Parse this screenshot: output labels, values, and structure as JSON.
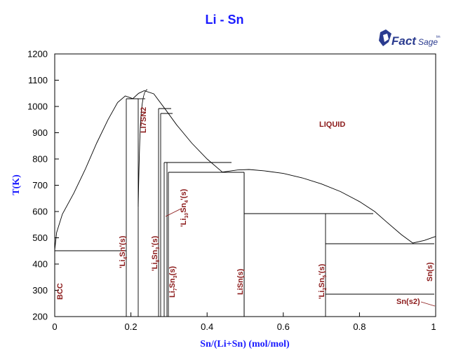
{
  "title": "Li - Sn",
  "brand": {
    "fact": "Fact",
    "sage": "Sage",
    "tm": "tm"
  },
  "colors": {
    "title": "#1a1aff",
    "phase_label": "#8b1a1a",
    "line": "#000000"
  },
  "chart_data": {
    "type": "phase-diagram",
    "title": "Li - Sn",
    "xlabel": "Sn/(Li+Sn) (mol/mol)",
    "ylabel": "T(K)",
    "xlim": [
      0,
      1
    ],
    "ylim": [
      200,
      1200
    ],
    "xticks": [
      "0",
      "0.2",
      "0.4",
      "0.6",
      "0.8",
      "1"
    ],
    "yticks": [
      "200",
      "300",
      "400",
      "500",
      "600",
      "700",
      "800",
      "900",
      "1000",
      "1100",
      "1200"
    ],
    "phase_labels": [
      {
        "id": "liquid",
        "text": "LIQUID"
      },
      {
        "id": "bcc",
        "text": "BCC"
      },
      {
        "id": "li4sn",
        "main": "'Li",
        "sub1": "4",
        "mid": "Sn'(s)",
        "sub2": "",
        "end": ""
      },
      {
        "id": "li7sn2",
        "text": "LI7SN2"
      },
      {
        "id": "li8sn3",
        "main": "'Li",
        "sub1": "8",
        "mid": "Sn",
        "sub2": "3",
        "end": "'(s)"
      },
      {
        "id": "li7sn3",
        "main": "Li",
        "sub1": "7",
        "mid": "Sn",
        "sub2": "3",
        "end": "(s)"
      },
      {
        "id": "li10sn4",
        "main": "'Li",
        "sub1": "10",
        "mid": "Sn",
        "sub2": "4",
        "end": "'(s)"
      },
      {
        "id": "lisn",
        "text": "LiSn(s)"
      },
      {
        "id": "li2sn5",
        "main": "'Li",
        "sub1": "2",
        "mid": "Sn",
        "sub2": "5",
        "end": "'(s)"
      },
      {
        "id": "sn",
        "text": "Sn(s)"
      },
      {
        "id": "sn2",
        "text": "Sn(s2)"
      }
    ],
    "liquidus": [
      [
        0.0,
        453
      ],
      [
        0.005,
        520
      ],
      [
        0.02,
        590
      ],
      [
        0.05,
        670
      ],
      [
        0.08,
        760
      ],
      [
        0.11,
        860
      ],
      [
        0.14,
        950
      ],
      [
        0.165,
        1015
      ],
      [
        0.185,
        1040
      ],
      [
        0.205,
        1030
      ],
      [
        0.22,
        1050
      ],
      [
        0.235,
        1060
      ],
      [
        0.26,
        1048
      ],
      [
        0.29,
        990
      ],
      [
        0.32,
        930
      ],
      [
        0.36,
        860
      ],
      [
        0.4,
        800
      ],
      [
        0.44,
        750
      ],
      [
        0.48,
        758
      ],
      [
        0.51,
        760
      ],
      [
        0.55,
        755
      ],
      [
        0.6,
        745
      ],
      [
        0.65,
        728
      ],
      [
        0.7,
        705
      ],
      [
        0.75,
        676
      ],
      [
        0.8,
        638
      ],
      [
        0.84,
        600
      ],
      [
        0.87,
        562
      ],
      [
        0.91,
        512
      ],
      [
        0.94,
        480
      ],
      [
        0.97,
        490
      ],
      [
        1.0,
        505
      ]
    ],
    "invariant_temperatures": [
      453,
      1035,
      1000,
      990,
      788,
      750,
      593,
      480,
      286
    ]
  }
}
